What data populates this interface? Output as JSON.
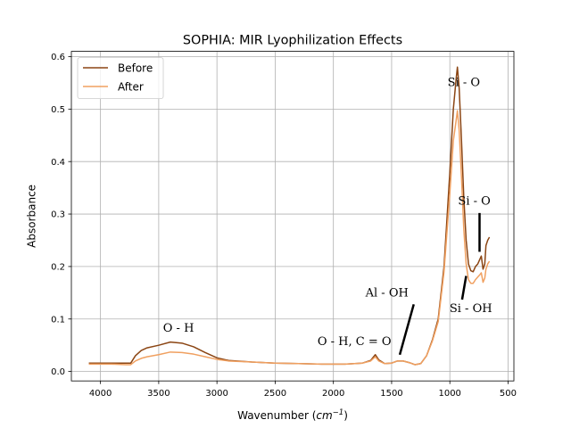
{
  "chart_data": {
    "type": "line",
    "title": "SOPHIA: MIR Lyophilization Effects",
    "xlabel": "Wavenumber (cm⁻¹)",
    "xlabel_text": "Wavenumber (",
    "xlabel_unit": "cm",
    "xlabel_exp": "−1",
    "xlabel_close": ")",
    "ylabel": "Absorbance",
    "xlim": [
      4250,
      450
    ],
    "ylim": [
      -0.018,
      0.61
    ],
    "x_inverted": true,
    "grid": true,
    "legend_position": "top-left",
    "x_ticks": [
      4000,
      3500,
      3000,
      2500,
      2000,
      1500,
      1000,
      500
    ],
    "x_tick_labels": [
      "4000",
      "3500",
      "3000",
      "2500",
      "2000",
      "1500",
      "1000",
      "500"
    ],
    "y_ticks": [
      0.0,
      0.1,
      0.2,
      0.3,
      0.4,
      0.5,
      0.6
    ],
    "y_tick_labels": [
      "0.0",
      "0.1",
      "0.2",
      "0.3",
      "0.4",
      "0.5",
      "0.6"
    ],
    "series": [
      {
        "name": "Before",
        "color": "#8b4513",
        "points": [
          [
            4100,
            0.016
          ],
          [
            3900,
            0.016
          ],
          [
            3780,
            0.016
          ],
          [
            3740,
            0.016
          ],
          [
            3700,
            0.03
          ],
          [
            3650,
            0.04
          ],
          [
            3600,
            0.045
          ],
          [
            3500,
            0.05
          ],
          [
            3400,
            0.056
          ],
          [
            3300,
            0.054
          ],
          [
            3200,
            0.047
          ],
          [
            3100,
            0.036
          ],
          [
            3000,
            0.026
          ],
          [
            2900,
            0.021
          ],
          [
            2700,
            0.018
          ],
          [
            2500,
            0.016
          ],
          [
            2300,
            0.015
          ],
          [
            2100,
            0.014
          ],
          [
            1900,
            0.014
          ],
          [
            1750,
            0.016
          ],
          [
            1680,
            0.021
          ],
          [
            1640,
            0.032
          ],
          [
            1610,
            0.022
          ],
          [
            1560,
            0.015
          ],
          [
            1500,
            0.016
          ],
          [
            1450,
            0.02
          ],
          [
            1400,
            0.02
          ],
          [
            1350,
            0.017
          ],
          [
            1300,
            0.013
          ],
          [
            1250,
            0.015
          ],
          [
            1200,
            0.03
          ],
          [
            1150,
            0.06
          ],
          [
            1100,
            0.1
          ],
          [
            1050,
            0.2
          ],
          [
            1000,
            0.38
          ],
          [
            970,
            0.5
          ],
          [
            945,
            0.56
          ],
          [
            935,
            0.58
          ],
          [
            920,
            0.54
          ],
          [
            900,
            0.44
          ],
          [
            880,
            0.33
          ],
          [
            860,
            0.25
          ],
          [
            840,
            0.205
          ],
          [
            820,
            0.192
          ],
          [
            800,
            0.19
          ],
          [
            780,
            0.2
          ],
          [
            760,
            0.205
          ],
          [
            740,
            0.215
          ],
          [
            730,
            0.22
          ],
          [
            715,
            0.195
          ],
          [
            700,
            0.205
          ],
          [
            690,
            0.24
          ],
          [
            675,
            0.25
          ],
          [
            660,
            0.256
          ]
        ]
      },
      {
        "name": "After",
        "color": "#f0a060",
        "points": [
          [
            4100,
            0.014
          ],
          [
            3900,
            0.014
          ],
          [
            3780,
            0.013
          ],
          [
            3740,
            0.013
          ],
          [
            3700,
            0.02
          ],
          [
            3650,
            0.025
          ],
          [
            3600,
            0.028
          ],
          [
            3500,
            0.032
          ],
          [
            3400,
            0.037
          ],
          [
            3300,
            0.036
          ],
          [
            3200,
            0.033
          ],
          [
            3100,
            0.028
          ],
          [
            3000,
            0.023
          ],
          [
            2900,
            0.02
          ],
          [
            2700,
            0.018
          ],
          [
            2500,
            0.016
          ],
          [
            2300,
            0.015
          ],
          [
            2100,
            0.014
          ],
          [
            1900,
            0.014
          ],
          [
            1750,
            0.016
          ],
          [
            1680,
            0.02
          ],
          [
            1640,
            0.028
          ],
          [
            1610,
            0.02
          ],
          [
            1560,
            0.015
          ],
          [
            1500,
            0.016
          ],
          [
            1450,
            0.02
          ],
          [
            1400,
            0.02
          ],
          [
            1350,
            0.017
          ],
          [
            1300,
            0.013
          ],
          [
            1250,
            0.015
          ],
          [
            1200,
            0.03
          ],
          [
            1150,
            0.058
          ],
          [
            1100,
            0.095
          ],
          [
            1050,
            0.19
          ],
          [
            1000,
            0.34
          ],
          [
            970,
            0.44
          ],
          [
            945,
            0.48
          ],
          [
            935,
            0.497
          ],
          [
            920,
            0.46
          ],
          [
            900,
            0.37
          ],
          [
            880,
            0.27
          ],
          [
            860,
            0.205
          ],
          [
            840,
            0.175
          ],
          [
            820,
            0.168
          ],
          [
            800,
            0.168
          ],
          [
            780,
            0.175
          ],
          [
            760,
            0.18
          ],
          [
            740,
            0.185
          ],
          [
            730,
            0.188
          ],
          [
            715,
            0.17
          ],
          [
            700,
            0.178
          ],
          [
            690,
            0.195
          ],
          [
            675,
            0.205
          ],
          [
            660,
            0.21
          ]
        ]
      }
    ],
    "annotations": [
      {
        "text": "O - H",
        "x": 3330,
        "y": 0.076
      },
      {
        "text": "O - H, C = O",
        "x": 1820,
        "y": 0.05
      },
      {
        "text": "Al - OH",
        "x": 1540,
        "y": 0.143
      },
      {
        "text": "Si - O",
        "x": 880,
        "y": 0.544
      },
      {
        "text": "Si - O",
        "x": 790,
        "y": 0.318
      },
      {
        "text": "Si - OH",
        "x": 820,
        "y": 0.113
      }
    ],
    "pointer_lines": [
      {
        "from": [
          1310,
          0.128
        ],
        "to": [
          1430,
          0.032
        ]
      },
      {
        "from": [
          745,
          0.302
        ],
        "to": [
          745,
          0.228
        ]
      },
      {
        "from": [
          895,
          0.137
        ],
        "to": [
          860,
          0.182
        ]
      }
    ]
  }
}
